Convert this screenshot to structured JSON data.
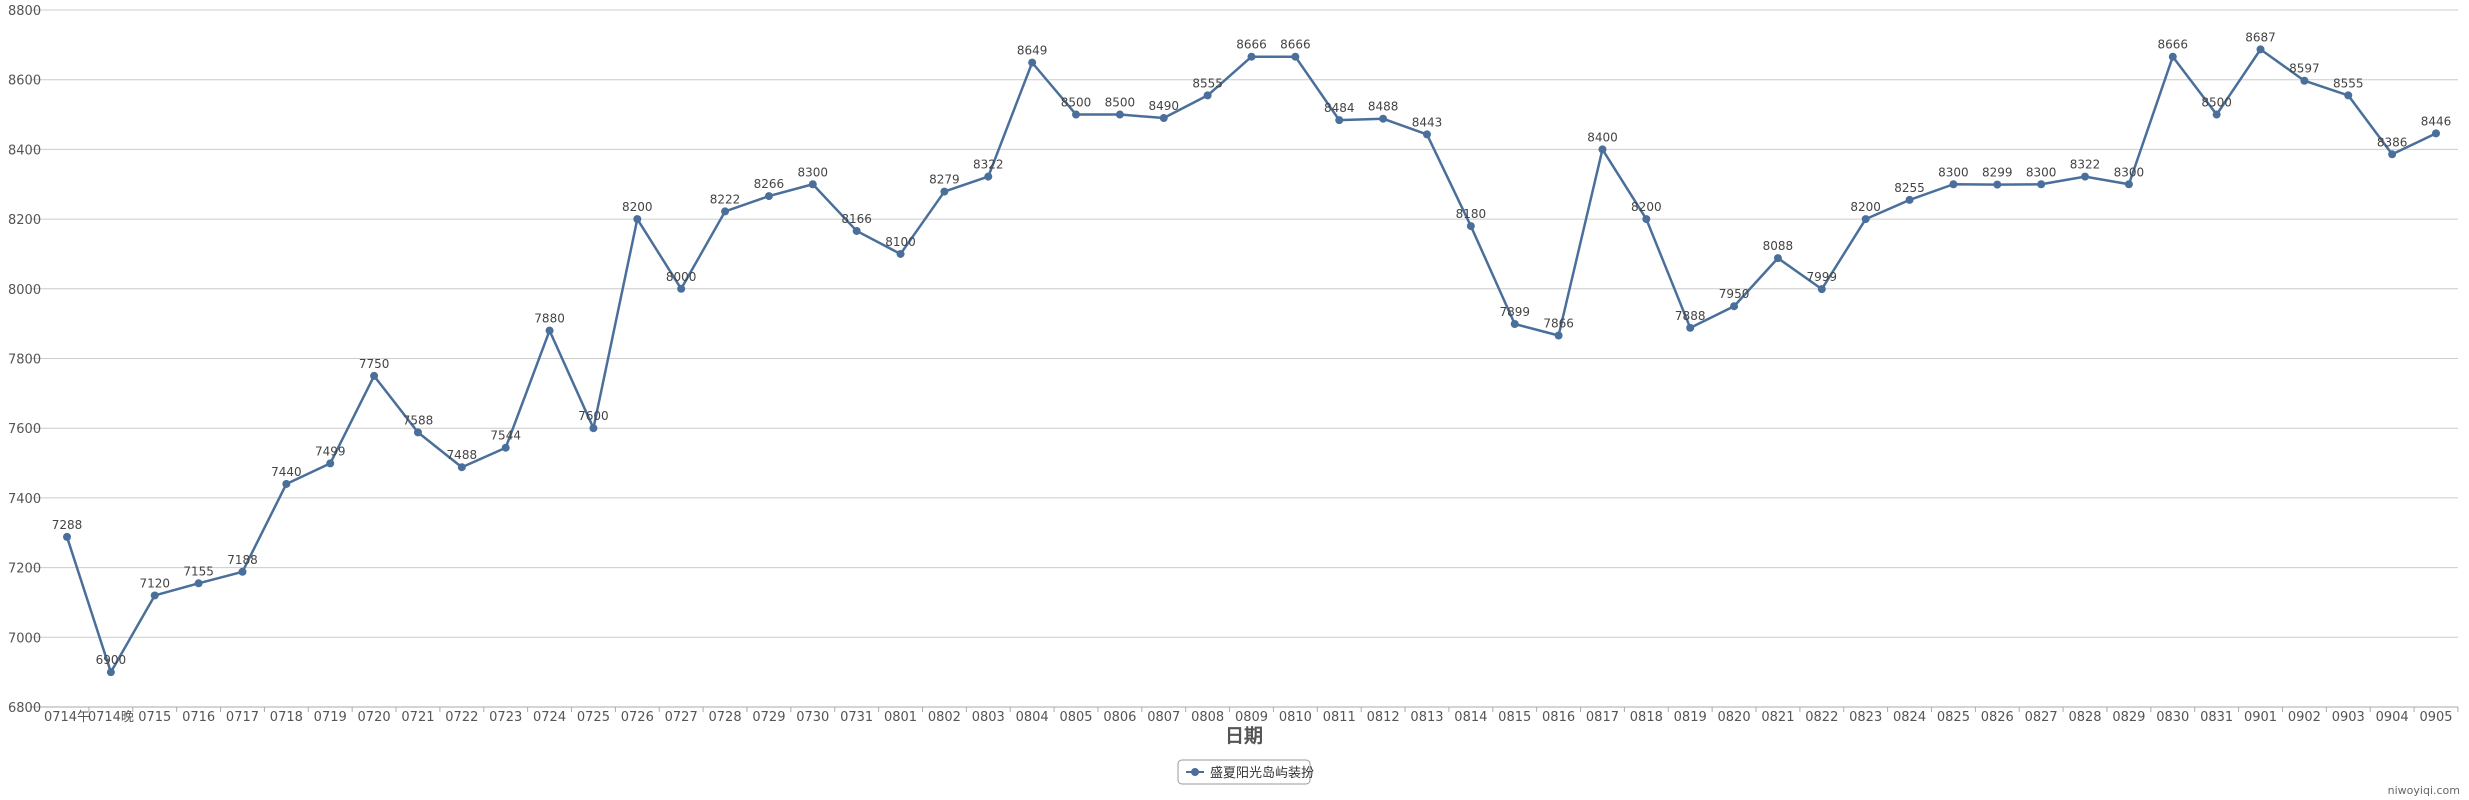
{
  "chart_data": {
    "type": "line",
    "xlabel": "日期",
    "ylabel": "",
    "ylim": [
      6800,
      8800
    ],
    "yticks": [
      6800,
      7000,
      7200,
      7400,
      7600,
      7800,
      8000,
      8200,
      8400,
      8600,
      8800
    ],
    "grid": true,
    "legend_position": "bottom-center",
    "categories": [
      "0714午",
      "0714晚",
      "0715",
      "0716",
      "0717",
      "0718",
      "0719",
      "0720",
      "0721",
      "0722",
      "0723",
      "0724",
      "0725",
      "0726",
      "0727",
      "0728",
      "0729",
      "0730",
      "0731",
      "0801",
      "0802",
      "0803",
      "0804",
      "0805",
      "0806",
      "0807",
      "0808",
      "0809",
      "0810",
      "0811",
      "0812",
      "0813",
      "0814",
      "0815",
      "0816",
      "0817",
      "0818",
      "0819",
      "0820",
      "0821",
      "0822",
      "0823",
      "0824",
      "0825",
      "0826",
      "0827",
      "0828",
      "0829",
      "0830",
      "0831",
      "0901",
      "0902",
      "0903",
      "0904",
      "0905"
    ],
    "series": [
      {
        "name": "盛夏阳光岛屿装扮",
        "color": "#4a6f9a",
        "values": [
          7288,
          6900,
          7120,
          7155,
          7188,
          7440,
          7499,
          7750,
          7588,
          7488,
          7544,
          7880,
          7600,
          8200,
          8000,
          8222,
          8266,
          8300,
          8166,
          8100,
          8279,
          8322,
          8649,
          8500,
          8500,
          8490,
          8555,
          8666,
          8666,
          8484,
          8488,
          8443,
          8180,
          7899,
          7866,
          8400,
          8200,
          7888,
          7950,
          8088,
          7999,
          8200,
          8255,
          8300,
          8299,
          8300,
          8322,
          8300,
          8666,
          8500,
          8687,
          8597,
          8555,
          8386,
          8446
        ]
      }
    ]
  },
  "watermark": "niwoyiqi.com",
  "colors": {
    "grid": "#cccccc",
    "axis": "#aaaaaa",
    "line": "#4a6f9a"
  }
}
